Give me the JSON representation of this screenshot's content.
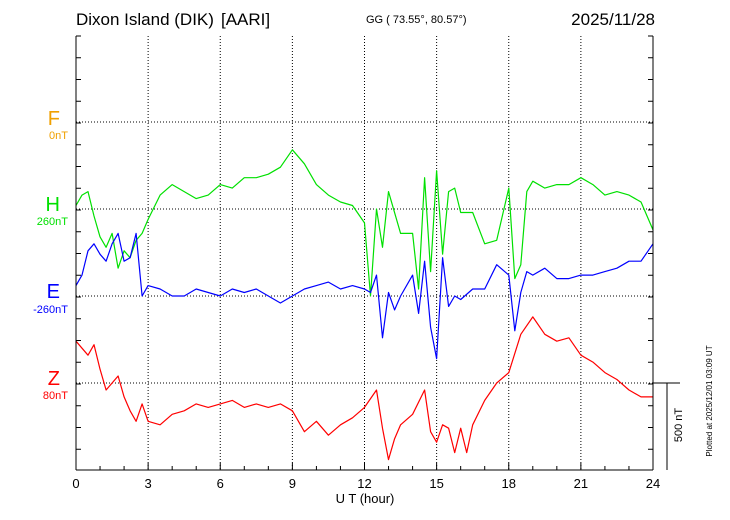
{
  "header": {
    "station": "Dixon Island (DIK)",
    "institute": "[AARI]",
    "coords": "GG ( 73.55°,  80.57°)",
    "date": "2025/11/28"
  },
  "plotted_note": "Plotted at 2025/12/01 03:09 UT",
  "scale_bar_label": "500 nT",
  "colors": {
    "F": "#f0a000",
    "H": "#00e000",
    "E": "#0000ff",
    "Z": "#ff0000"
  },
  "chart_data": {
    "type": "line",
    "xlabel": "U T (hour)",
    "xlim": [
      0,
      24
    ],
    "x_ticks": [
      0,
      3,
      6,
      9,
      12,
      15,
      18,
      21,
      24
    ],
    "x_tick_labels": [
      "0",
      "3",
      "6",
      "9",
      "12",
      "15",
      "18",
      "21",
      "24"
    ],
    "vertical_scale_nT_per_division": 250,
    "grid": true,
    "series": [
      {
        "name": "F",
        "baseline_label": "0nT",
        "baseline_nT": 0,
        "points": []
      },
      {
        "name": "H",
        "baseline_label": "260nT",
        "baseline_nT": 260,
        "x": [
          0,
          0.25,
          0.5,
          0.75,
          1.0,
          1.25,
          1.5,
          1.75,
          2.0,
          2.25,
          2.5,
          2.75,
          3.0,
          3.5,
          4.0,
          4.5,
          5.0,
          5.5,
          6.0,
          6.5,
          7.0,
          7.5,
          8.0,
          8.5,
          9.0,
          9.5,
          10.0,
          10.5,
          11.0,
          11.5,
          12.0,
          12.25,
          12.5,
          12.75,
          13.0,
          13.5,
          14.0,
          14.25,
          14.5,
          14.75,
          15.0,
          15.25,
          15.5,
          15.75,
          16.0,
          16.5,
          17.0,
          17.5,
          18.0,
          18.25,
          18.5,
          18.75,
          19.0,
          19.5,
          20.0,
          20.5,
          21.0,
          21.5,
          22.0,
          22.5,
          23.0,
          23.5,
          24.0
        ],
        "y": [
          270,
          300,
          310,
          240,
          180,
          150,
          190,
          90,
          140,
          120,
          170,
          190,
          230,
          300,
          330,
          310,
          290,
          300,
          330,
          320,
          350,
          350,
          360,
          380,
          430,
          390,
          330,
          300,
          280,
          270,
          220,
          10,
          260,
          150,
          310,
          190,
          190,
          30,
          350,
          80,
          370,
          130,
          310,
          320,
          250,
          250,
          160,
          170,
          320,
          60,
          100,
          310,
          340,
          320,
          330,
          330,
          350,
          330,
          300,
          310,
          300,
          280,
          200
        ]
      },
      {
        "name": "E",
        "baseline_label": "-260nT",
        "baseline_nT": -260,
        "x": [
          0,
          0.25,
          0.5,
          0.75,
          1.0,
          1.25,
          1.5,
          1.75,
          2.0,
          2.25,
          2.5,
          2.75,
          3.0,
          3.5,
          4.0,
          4.5,
          5.0,
          5.5,
          6.0,
          6.5,
          7.0,
          7.5,
          8.0,
          8.5,
          9.0,
          9.5,
          10.0,
          10.5,
          11.0,
          11.5,
          12.0,
          12.25,
          12.5,
          12.75,
          13.0,
          13.25,
          13.5,
          14.0,
          14.25,
          14.5,
          14.75,
          15.0,
          15.25,
          15.5,
          15.75,
          16.0,
          16.5,
          17.0,
          17.5,
          18.0,
          18.25,
          18.5,
          18.75,
          19.0,
          19.5,
          20.0,
          20.5,
          21.0,
          21.5,
          22.0,
          22.5,
          23.0,
          23.5,
          24.0
        ],
        "y": [
          -230,
          -200,
          -130,
          -110,
          -140,
          -160,
          -110,
          -80,
          -160,
          -150,
          -80,
          -260,
          -230,
          -240,
          -260,
          -260,
          -240,
          -250,
          -260,
          -240,
          -250,
          -240,
          -260,
          -280,
          -260,
          -240,
          -230,
          -220,
          -240,
          -230,
          -240,
          -250,
          -200,
          -380,
          -250,
          -300,
          -260,
          -200,
          -310,
          -160,
          -350,
          -440,
          -150,
          -290,
          -260,
          -270,
          -240,
          -240,
          -170,
          -200,
          -360,
          -250,
          -190,
          -200,
          -180,
          -210,
          -210,
          -200,
          -200,
          -190,
          -180,
          -160,
          -160,
          -110
        ]
      },
      {
        "name": "Z",
        "baseline_label": "80nT",
        "baseline_nT": 80,
        "x": [
          0,
          0.5,
          0.75,
          1.0,
          1.25,
          1.5,
          1.75,
          2.0,
          2.25,
          2.5,
          2.75,
          3.0,
          3.5,
          4.0,
          4.5,
          5.0,
          5.5,
          6.0,
          6.5,
          7.0,
          7.5,
          8.0,
          8.5,
          9.0,
          9.5,
          10.0,
          10.5,
          11.0,
          11.5,
          12.0,
          12.5,
          12.75,
          13.0,
          13.25,
          13.5,
          14.0,
          14.5,
          14.75,
          15.0,
          15.25,
          15.5,
          15.75,
          16.0,
          16.25,
          16.5,
          17.0,
          17.5,
          18.0,
          18.5,
          19.0,
          19.5,
          20.0,
          20.5,
          21.0,
          21.5,
          22.0,
          22.5,
          23.0,
          23.5,
          24.0
        ],
        "y": [
          200,
          160,
          190,
          120,
          60,
          80,
          100,
          40,
          0,
          -30,
          20,
          -30,
          -40,
          -10,
          0,
          20,
          10,
          20,
          30,
          10,
          20,
          10,
          20,
          0,
          -60,
          -30,
          -70,
          -40,
          -20,
          10,
          60,
          -50,
          -140,
          -80,
          -40,
          -10,
          60,
          -60,
          -90,
          -40,
          -50,
          -120,
          -50,
          -120,
          -40,
          30,
          80,
          110,
          220,
          270,
          220,
          200,
          210,
          160,
          140,
          110,
          90,
          60,
          40,
          40
        ]
      }
    ]
  }
}
